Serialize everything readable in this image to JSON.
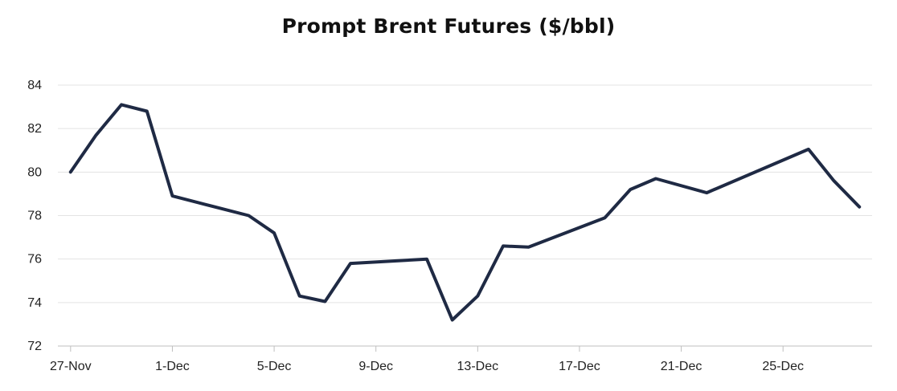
{
  "chart_data": {
    "type": "line",
    "title": "Prompt Brent Futures ($/bbl)",
    "xlabel": "",
    "ylabel": "",
    "ylim": [
      72,
      84
    ],
    "yticks": [
      72,
      74,
      76,
      78,
      80,
      82,
      84
    ],
    "xticks": [
      "27-Nov",
      "1-Dec",
      "5-Dec",
      "9-Dec",
      "13-Dec",
      "17-Dec",
      "21-Dec",
      "25-Dec"
    ],
    "xlim": [
      "2023-11-27",
      "2023-12-29"
    ],
    "grid": true,
    "legend": "none",
    "line_color": "#1f2a44",
    "series": [
      {
        "x": [
          "2023-11-27",
          "2023-11-28",
          "2023-11-29",
          "2023-11-30",
          "2023-12-01",
          "2023-12-04",
          "2023-12-05",
          "2023-12-06",
          "2023-12-07",
          "2023-12-08",
          "2023-12-11",
          "2023-12-12",
          "2023-12-13",
          "2023-12-14",
          "2023-12-15",
          "2023-12-18",
          "2023-12-19",
          "2023-12-20",
          "2023-12-22",
          "2023-12-26",
          "2023-12-27",
          "2023-12-28"
        ],
        "values": [
          80.0,
          81.7,
          83.1,
          82.8,
          78.9,
          78.0,
          77.2,
          74.3,
          74.05,
          75.8,
          76.0,
          73.2,
          74.3,
          76.6,
          76.55,
          77.9,
          79.2,
          79.7,
          79.05,
          81.05,
          79.6,
          78.4
        ]
      }
    ]
  }
}
